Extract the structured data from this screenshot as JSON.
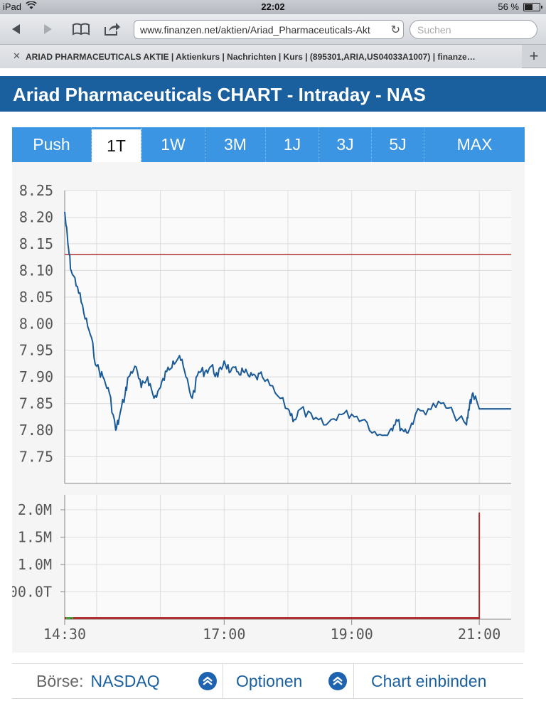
{
  "status_bar": {
    "device": "iPad",
    "time": "22:02",
    "battery": "56 %",
    "battery_level": 0.56
  },
  "browser": {
    "url": "www.finanzen.net/aktien/Ariad_Pharmaceuticals-Akt",
    "search_placeholder": "Suchen",
    "tab_title": "ARIAD PHARMACEUTICALS AKTIE | Aktienkurs | Nachrichten | Kurs | (895301,ARIA,US04033A1007) | finanze…",
    "icons": [
      "back-icon",
      "forward-icon",
      "bookmarks-icon",
      "share-icon",
      "reload-icon",
      "close-icon",
      "plus-icon"
    ]
  },
  "page": {
    "heading": "Ariad Pharmaceuticals CHART - Intraday - NAS",
    "period_tabs": [
      {
        "label": "Push",
        "active": false
      },
      {
        "label": "1T",
        "active": true
      },
      {
        "label": "1W",
        "active": false
      },
      {
        "label": "3M",
        "active": false
      },
      {
        "label": "1J",
        "active": false
      },
      {
        "label": "3J",
        "active": false
      },
      {
        "label": "5J",
        "active": false
      },
      {
        "label": "MAX",
        "active": false
      }
    ],
    "footer": {
      "exchange_label": "Börse:",
      "exchange_value": "NASDAQ",
      "options_label": "Optionen",
      "embed_label": "Chart einbinden"
    },
    "colors": {
      "heading_bg": "#1a5f9e",
      "tab_bg": "#3b95e2",
      "price_line": "#1a5a96",
      "reference_line": "#b03030",
      "volume": "#b03030"
    }
  },
  "chart_data": [
    {
      "type": "line",
      "title": "",
      "xlabel": "",
      "ylabel": "",
      "x_ticks": [
        "14:30",
        "17:00",
        "19:00",
        "21:00"
      ],
      "y_ticks": [
        "8.25",
        "8.20",
        "8.15",
        "8.10",
        "8.05",
        "8.00",
        "7.95",
        "7.90",
        "7.85",
        "7.80",
        "7.75"
      ],
      "ylim": [
        7.7,
        8.25
      ],
      "xlim_hours": [
        14.5,
        21.5
      ],
      "reference_line": 8.13,
      "grid": true,
      "series": [
        {
          "x": [
            14.5,
            14.55,
            14.6,
            14.7,
            14.8,
            14.9,
            15.0,
            15.1,
            15.2,
            15.3,
            15.35,
            15.45,
            15.5,
            15.6,
            15.7,
            15.8,
            15.9,
            16.0,
            16.1,
            16.2,
            16.3,
            16.4,
            16.5,
            16.6,
            16.7,
            16.8,
            16.9,
            17.0,
            17.1,
            17.2,
            17.3,
            17.4,
            17.5,
            17.6,
            17.8,
            18.0,
            18.1,
            18.2,
            18.4,
            18.6,
            18.8,
            19.0,
            19.2,
            19.4,
            19.6,
            19.7,
            19.8,
            19.9,
            20.0,
            20.2,
            20.4,
            20.6,
            20.8,
            20.85,
            20.9,
            21.0,
            21.2,
            21.5
          ],
          "y": [
            8.21,
            8.15,
            8.1,
            8.07,
            8.02,
            7.98,
            7.92,
            7.9,
            7.87,
            7.8,
            7.82,
            7.87,
            7.9,
            7.92,
            7.88,
            7.9,
            7.86,
            7.88,
            7.91,
            7.93,
            7.94,
            7.9,
            7.86,
            7.91,
            7.91,
            7.92,
            7.9,
            7.93,
            7.91,
            7.91,
            7.91,
            7.9,
            7.9,
            7.9,
            7.87,
            7.84,
            7.82,
            7.84,
            7.82,
            7.81,
            7.83,
            7.83,
            7.82,
            7.79,
            7.8,
            7.82,
            7.8,
            7.8,
            7.83,
            7.84,
            7.85,
            7.83,
            7.81,
            7.85,
            7.87,
            7.84,
            7.84,
            7.84
          ]
        }
      ]
    },
    {
      "type": "bar",
      "title": "",
      "x_ticks": [
        "14:30",
        "17:00",
        "19:00",
        "21:00"
      ],
      "y_ticks": [
        "2.0M",
        "1.5M",
        "1.0M",
        "00.0T"
      ],
      "ylim": [
        0,
        2000000
      ],
      "series": [
        {
          "x": [
            14.6,
            15.5,
            16.5,
            16.9,
            17.5,
            18.2,
            19.0,
            19.8,
            20.5,
            21.0
          ],
          "values": [
            20000,
            15000,
            10000,
            12000,
            10000,
            8000,
            9000,
            10000,
            8000,
            1950000
          ]
        }
      ]
    }
  ]
}
